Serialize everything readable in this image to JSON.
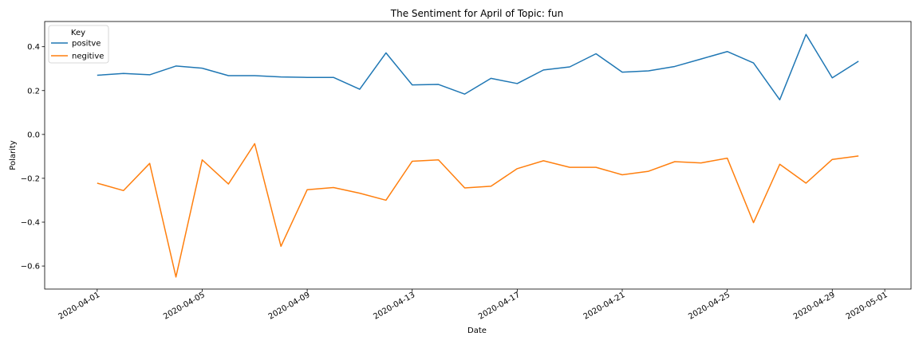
{
  "chart_data": {
    "type": "line",
    "title": "The Sentiment for April of Topic: fun",
    "xlabel": "Date",
    "ylabel": "Polarity",
    "x": [
      "2020-04-01",
      "2020-04-02",
      "2020-04-03",
      "2020-04-04",
      "2020-04-05",
      "2020-04-06",
      "2020-04-07",
      "2020-04-08",
      "2020-04-09",
      "2020-04-10",
      "2020-04-11",
      "2020-04-12",
      "2020-04-13",
      "2020-04-14",
      "2020-04-15",
      "2020-04-16",
      "2020-04-17",
      "2020-04-18",
      "2020-04-19",
      "2020-04-20",
      "2020-04-21",
      "2020-04-22",
      "2020-04-23",
      "2020-04-24",
      "2020-04-25",
      "2020-04-26",
      "2020-04-27",
      "2020-04-28",
      "2020-04-29",
      "2020-04-30"
    ],
    "series": [
      {
        "name": "positve",
        "color": "#1f77b4",
        "values": [
          0.27,
          0.278,
          0.272,
          0.312,
          0.302,
          0.268,
          0.268,
          0.262,
          0.26,
          0.26,
          0.206,
          0.372,
          0.226,
          0.228,
          0.184,
          0.256,
          0.232,
          0.294,
          0.308,
          0.368,
          0.284,
          0.29,
          0.31,
          0.344,
          0.378,
          0.326,
          0.158,
          0.456,
          0.258,
          0.334
        ]
      },
      {
        "name": "negitive",
        "color": "#ff7f0e",
        "values": [
          -0.222,
          -0.256,
          -0.132,
          -0.65,
          -0.116,
          -0.226,
          -0.042,
          -0.51,
          -0.252,
          -0.242,
          -0.268,
          -0.3,
          -0.122,
          -0.116,
          -0.244,
          -0.236,
          -0.156,
          -0.12,
          -0.15,
          -0.15,
          -0.184,
          -0.168,
          -0.124,
          -0.13,
          -0.108,
          -0.402,
          -0.136,
          -0.222,
          -0.114,
          -0.098
        ]
      }
    ],
    "xticks": [
      "2020-04-01",
      "2020-04-05",
      "2020-04-09",
      "2020-04-13",
      "2020-04-17",
      "2020-04-21",
      "2020-04-25",
      "2020-04-29",
      "2020-05-01"
    ],
    "xlim": [
      "2020-03-30",
      "2020-05-02"
    ],
    "yticks": [
      0.4,
      0.2,
      0.0,
      -0.2,
      -0.4,
      -0.6
    ],
    "ylim": [
      -0.705,
      0.515
    ],
    "legend": {
      "title": "Key",
      "placement": "top-left"
    },
    "grid": false
  }
}
